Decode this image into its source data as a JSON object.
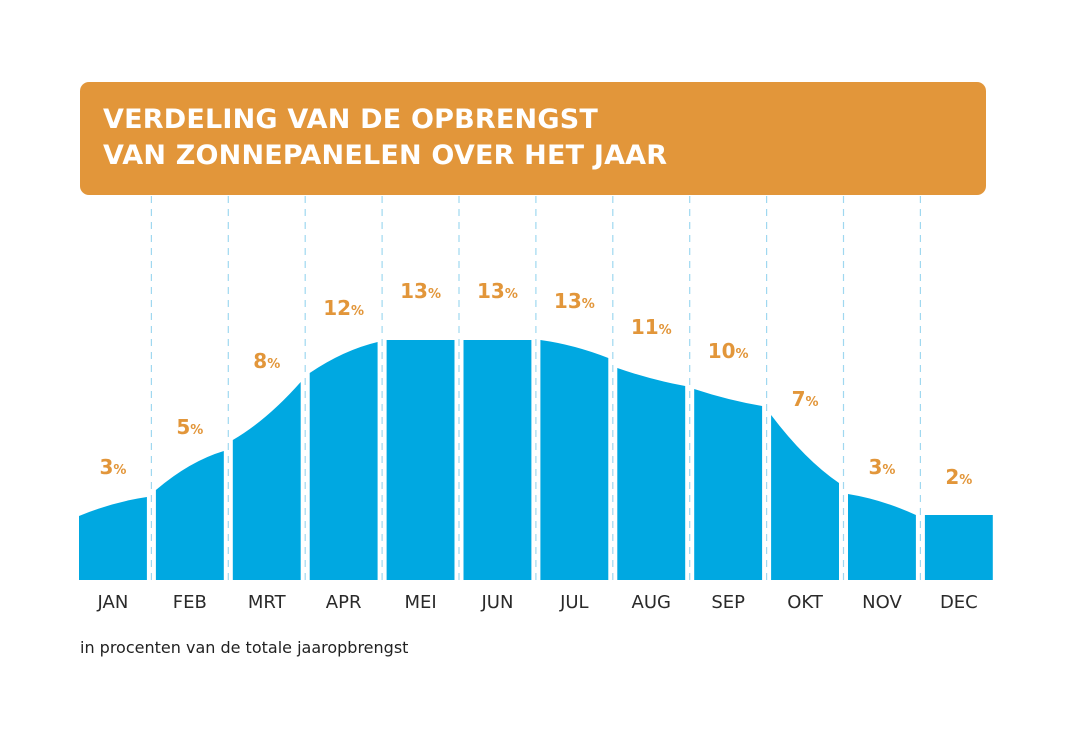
{
  "chart_data": {
    "type": "area",
    "title": [
      "VERDELING VAN DE OPBRENGST",
      "VAN ZONNEPANELEN OVER HET JAAR"
    ],
    "categories": [
      "JAN",
      "FEB",
      "MRT",
      "APR",
      "MEI",
      "JUN",
      "JUL",
      "AUG",
      "SEP",
      "OKT",
      "NOV",
      "DEC"
    ],
    "values": [
      3,
      5,
      8,
      12,
      13,
      13,
      13,
      11,
      10,
      7,
      3,
      2
    ],
    "unit": "%",
    "footnote": "in procenten van de totale jaaropbrengst",
    "grid": "vertical dashed separators",
    "colors": {
      "area": "#00A8E1",
      "title_bg": "#E2963A",
      "value_labels": "#E2963A",
      "grid": "#9FD8F0"
    }
  }
}
